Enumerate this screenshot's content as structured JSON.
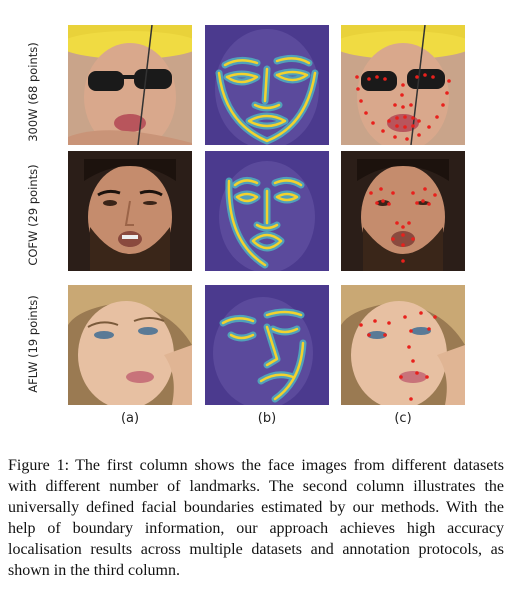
{
  "rows": [
    {
      "label": "300W (68 points)"
    },
    {
      "label": "COFW (29 points)"
    },
    {
      "label": "AFLW (19 points)"
    }
  ],
  "columns": [
    {
      "label": "(a)"
    },
    {
      "label": "(b)"
    },
    {
      "label": "(c)"
    }
  ],
  "caption": {
    "figure_number": "Figure 1:",
    "text": "The first column shows the face images from different datasets with different number of landmarks. The second column illustrates the universally defined facial boundaries estimated by our methods. With the help of boundary information, our approach achieves high accuracy localisation results across multiple datasets and annotation protocols, as shown in the third column."
  },
  "colors": {
    "boundary_bg": "#4b3a8e",
    "boundary_line": "#f2d22e",
    "boundary_glow": "#4ec6c8",
    "landmark": "#e8201c",
    "hat": "#e9d23a"
  }
}
